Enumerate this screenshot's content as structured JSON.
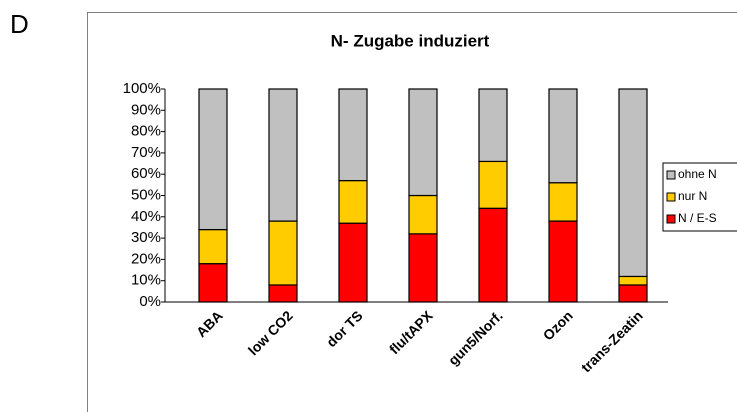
{
  "panel_label": "D",
  "chart_data": {
    "type": "stacked_bar",
    "title": "N- Zugabe induziert",
    "categories": [
      "ABA",
      "low CO2",
      "dor TS",
      "flu/tAPX",
      "gun5/Norf.",
      "Ozon",
      "trans-Zeatin"
    ],
    "series": [
      {
        "name": "N / E-S",
        "color": "#ff0000",
        "values": [
          18,
          8,
          37,
          32,
          44,
          38,
          8
        ]
      },
      {
        "name": "nur N",
        "color": "#ffcc00",
        "values": [
          16,
          30,
          20,
          18,
          22,
          18,
          4
        ]
      },
      {
        "name": "ohne N",
        "color": "#c0c0c0",
        "values": [
          66,
          62,
          43,
          50,
          34,
          44,
          88
        ]
      }
    ],
    "ylim": [
      0,
      100
    ],
    "yticks": [
      {
        "value": 0,
        "label": "0%"
      },
      {
        "value": 10,
        "label": "10%"
      },
      {
        "value": 20,
        "label": "20%"
      },
      {
        "value": 30,
        "label": "30%"
      },
      {
        "value": 40,
        "label": "40%"
      },
      {
        "value": 50,
        "label": "50%"
      },
      {
        "value": 60,
        "label": "60%"
      },
      {
        "value": 70,
        "label": "70%"
      },
      {
        "value": 80,
        "label": "80%"
      },
      {
        "value": 90,
        "label": "90%"
      },
      {
        "value": 100,
        "label": "100%"
      }
    ],
    "grid": false,
    "legend": "right"
  }
}
